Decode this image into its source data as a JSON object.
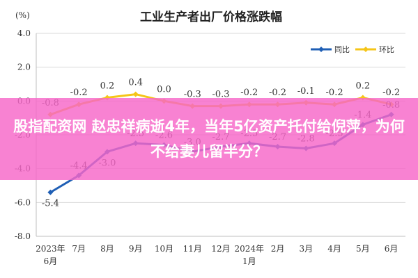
{
  "chart_data": {
    "type": "line",
    "title": "工业生产者出厂价格涨跌幅",
    "y_unit": "(%)",
    "categories": [
      [
        "2023年",
        "6月"
      ],
      [
        "7月"
      ],
      [
        "8月"
      ],
      [
        "9月"
      ],
      [
        "10月"
      ],
      [
        "11月"
      ],
      [
        "12月"
      ],
      [
        "2024年",
        "1月"
      ],
      [
        "2月"
      ],
      [
        "3月"
      ],
      [
        "4月"
      ],
      [
        "5月"
      ],
      [
        "6月"
      ]
    ],
    "ylim": [
      -8.0,
      4.0
    ],
    "yticks": [
      "4.0",
      "2.0",
      "0.0",
      "-2.0",
      "-4.0",
      "-6.0",
      "-8.0"
    ],
    "grid": true,
    "legend_position": "top-right",
    "series": [
      {
        "name": "同比",
        "color": "#1f5fb5",
        "values": [
          -5.4,
          -4.4,
          -3.0,
          -2.5,
          -2.6,
          -3.0,
          -2.7,
          -2.5,
          -2.7,
          -2.8,
          -2.5,
          -1.4,
          -0.8
        ],
        "labels": [
          "-5.4",
          "-4.4",
          "-3.0",
          "-2.5",
          "-2.6",
          "-3.0",
          "-2.7",
          "-2.5",
          "-2.7",
          "-2.8",
          "-2.5",
          "-1.4",
          "-0.8"
        ]
      },
      {
        "name": "环比",
        "color": "#f5c518",
        "values": [
          -0.8,
          -0.2,
          0.2,
          0.4,
          0.0,
          -0.3,
          -0.3,
          -0.2,
          -0.2,
          -0.1,
          -0.2,
          0.2,
          -0.2
        ],
        "labels": [
          "-0.8",
          "-0.2",
          "0.2",
          "0.4",
          "0.0",
          "-0.3",
          "-0.3",
          "-0.2",
          "-0.2",
          "-0.1",
          "-0.2",
          "0.2",
          "-0.2"
        ]
      }
    ]
  },
  "overlay": {
    "headline": "股指配资网 赵忠祥病逝4年，当年5亿资产托付给倪萍，为何不给妻儿留半分？",
    "color": "#f666c8"
  }
}
